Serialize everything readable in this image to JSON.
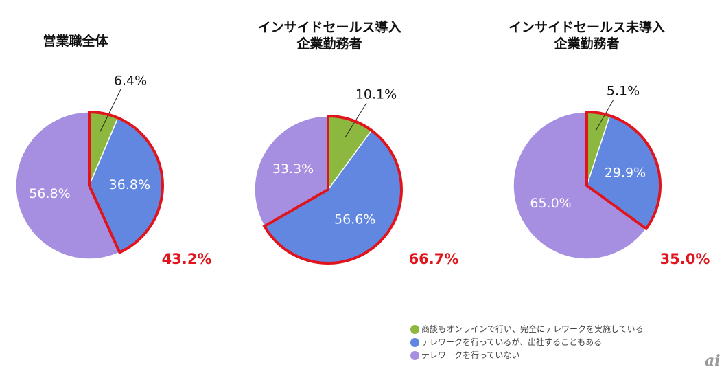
{
  "chart_data": [
    {
      "type": "pie",
      "title": "営業職全体",
      "title_lines": [
        "営業職全体"
      ],
      "values": [
        6.4,
        36.8,
        56.8
      ],
      "labels": [
        "6.4%",
        "36.8%",
        "56.8%"
      ],
      "highlight_total": "43.2%"
    },
    {
      "type": "pie",
      "title": "インサイドセールス導入企業勤務者",
      "title_lines": [
        "インサイドセールス導入",
        "企業勤務者"
      ],
      "values": [
        10.1,
        56.6,
        33.3
      ],
      "labels": [
        "10.1%",
        "56.6%",
        "33.3%"
      ],
      "highlight_total": "66.7%"
    },
    {
      "type": "pie",
      "title": "インサイドセールス未導入企業勤務者",
      "title_lines": [
        "インサイドセールス未導入",
        "企業勤務者"
      ],
      "values": [
        5.1,
        29.9,
        65.0
      ],
      "labels": [
        "5.1%",
        "29.9%",
        "65.0%"
      ],
      "highlight_total": "35.0%"
    }
  ],
  "legend": [
    {
      "label": "商談もオンラインで行い、完全にテレワークを実施している",
      "color": "#8db83f"
    },
    {
      "label": "テレワークを行っているが、出社することもある",
      "color": "#6287e0"
    },
    {
      "label": "テレワークを行っていない",
      "color": "#a68fe0"
    }
  ],
  "highlight_color": "#e0141c",
  "logo": "ai"
}
